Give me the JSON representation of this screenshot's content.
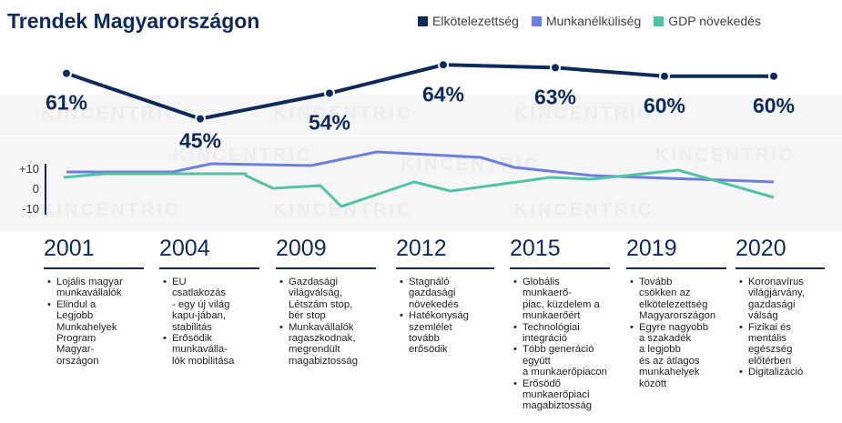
{
  "title": "Trendek Magyarországon",
  "legend": [
    {
      "label": "Elkötelezettség",
      "color": "#0e2a5c"
    },
    {
      "label": "Munkanélküliség",
      "color": "#6b7fde"
    },
    {
      "label": "GDP növekedés",
      "color": "#52c2a5"
    }
  ],
  "watermark": "KINCENTRIC",
  "chart_data": [
    {
      "type": "line",
      "categories": [
        "2001",
        "2004",
        "2009",
        "2012",
        "2015",
        "2019",
        "2020"
      ],
      "series": [
        {
          "name": "Elkötelezettség",
          "values": [
            61,
            45,
            54,
            64,
            63,
            60,
            60
          ],
          "color": "#0e2a5c",
          "labels": [
            "61%",
            "45%",
            "54%",
            "64%",
            "63%",
            "60%",
            "60%"
          ]
        }
      ]
    },
    {
      "type": "line",
      "yticks": [
        "+10",
        "0",
        "-10"
      ],
      "ylim": [
        -10,
        10
      ],
      "series": [
        {
          "name": "Munkanélküliség",
          "color": "#6b7fde",
          "x": [
            2001,
            2004,
            2005,
            2009,
            2012,
            2015,
            2017,
            2019,
            2020
          ],
          "values": [
            8,
            8,
            12,
            11,
            17,
            15,
            9,
            5,
            3
          ]
        },
        {
          "name": "GDP növekedés",
          "color": "#52c2a5",
          "x": [
            2001,
            2002,
            2004,
            2009,
            2010,
            2012,
            2013,
            2015,
            2016,
            2017,
            2019,
            2020,
            2021
          ],
          "values": [
            5,
            7,
            6,
            6,
            -1,
            0,
            -10,
            4,
            -2,
            5,
            3,
            9,
            -5
          ]
        }
      ]
    }
  ],
  "timeline": [
    {
      "year": "2001",
      "bullets": [
        [
          "Lojális magyar",
          "munkavállalók"
        ],
        [
          "Elindul a",
          "Legjobb",
          "Munkahelyek",
          "Program",
          "Magyar-",
          "országon"
        ]
      ]
    },
    {
      "year": "2004",
      "bullets": [
        [
          "EU",
          "csatlakozás",
          "- egy új világ",
          "kapu-jában,",
          "stabilitás"
        ],
        [
          "Erősödik",
          "munkaválla-",
          "lók mobilitása"
        ]
      ]
    },
    {
      "year": "2009",
      "bullets": [
        [
          "Gazdasági",
          "világválság,",
          "Létszám stop,",
          "bér stop"
        ],
        [
          "Munkavállalók",
          "ragaszkodnak,",
          "megrendült",
          "magabiztosság"
        ]
      ]
    },
    {
      "year": "2012",
      "bullets": [
        [
          "Stagnáló",
          "gazdasági",
          "növekedés"
        ],
        [
          "Hatékonyság",
          "szemlélet",
          "tovább",
          "erősödik"
        ]
      ]
    },
    {
      "year": "2015",
      "bullets": [
        [
          "Globális munkaerő-",
          "piac, küzdelem a",
          "munkaerőért"
        ],
        [
          "Technológiai",
          "integráció"
        ],
        [
          "Több generáció",
          "együtt",
          "a munkaerőpiacon"
        ],
        [
          "Erősödő",
          "munkaerőpiaci",
          "magabiztosság"
        ]
      ]
    },
    {
      "year": "2019",
      "bullets": [
        [
          "Tovább",
          "csökken az",
          "elkötelezettség",
          "Magyarországon"
        ],
        [
          "Egyre nagyobb",
          "a szakadék",
          "a legjobb",
          "és az átlagos",
          "munkahelyek",
          "között"
        ]
      ]
    },
    {
      "year": "2020",
      "bullets": [
        [
          "Koronavírus",
          "világjárvány,",
          "gazdasági",
          "válság"
        ],
        [
          "Fizikai és",
          "mentális",
          "egészség",
          "előtérben"
        ],
        [
          "Digitalizáció"
        ]
      ]
    }
  ]
}
